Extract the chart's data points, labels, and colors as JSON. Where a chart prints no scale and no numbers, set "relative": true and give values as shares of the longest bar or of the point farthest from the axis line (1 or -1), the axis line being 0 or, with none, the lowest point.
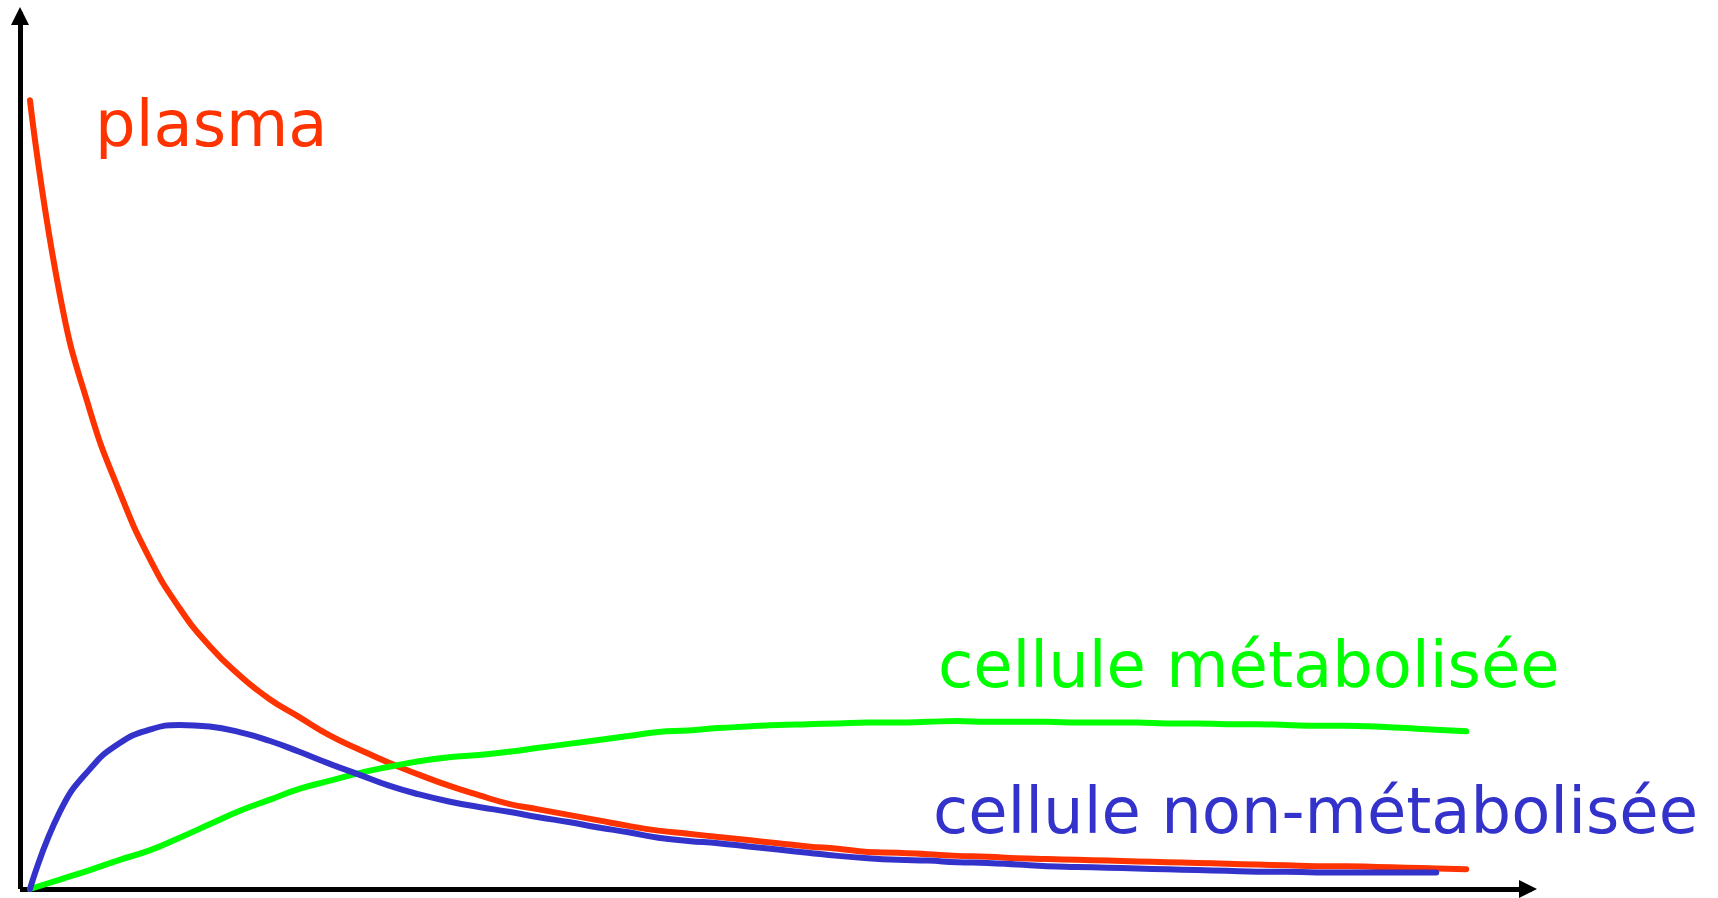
{
  "chart_data": {
    "type": "line",
    "relative": true,
    "marker": "none",
    "line_style": "solid",
    "categories": [
      null,
      null,
      null,
      null,
      null,
      null,
      null,
      null,
      null,
      null,
      null,
      null,
      null,
      null,
      null,
      null,
      null,
      null,
      null,
      null,
      null,
      null,
      null,
      null,
      null,
      null,
      null,
      null,
      null,
      null,
      null,
      null,
      null,
      null,
      null,
      null,
      null,
      null,
      null,
      null,
      null,
      null,
      null,
      null,
      null,
      null,
      null,
      null,
      null
    ],
    "series": [
      {
        "name": "plasma",
        "color": "#ff3300",
        "values": [
          1,
          0.753,
          0.607,
          0.503,
          0.419,
          0.356,
          0.308,
          0.271,
          0.241,
          0.218,
          0.195,
          0.177,
          0.16,
          0.145,
          0.131,
          0.119,
          0.108,
          0.101,
          0.094,
          0.087,
          0.08,
          0.074,
          0.07,
          0.066,
          0.062,
          0.058,
          0.054,
          0.051,
          0.047,
          0.046,
          0.044,
          0.042,
          0.041,
          0.039,
          0.038,
          0.037,
          0.036,
          0.035,
          0.034,
          0.033,
          0.032,
          0.031,
          0.03,
          0.029,
          0.029,
          0.028,
          0.027,
          0.026,
          0.025
        ]
      },
      {
        "name": "cellule métabolisée",
        "color": "#00ff00",
        "values": [
          0,
          0.012,
          0.024,
          0.037,
          0.049,
          0.065,
          0.082,
          0.099,
          0.113,
          0.127,
          0.137,
          0.147,
          0.155,
          0.162,
          0.167,
          0.17,
          0.174,
          0.179,
          0.184,
          0.189,
          0.194,
          0.199,
          0.201,
          0.204,
          0.206,
          0.208,
          0.209,
          0.21,
          0.211,
          0.211,
          0.212,
          0.213,
          0.212,
          0.212,
          0.212,
          0.211,
          0.211,
          0.211,
          0.21,
          0.21,
          0.209,
          0.209,
          0.208,
          0.207,
          0.207,
          0.206,
          0.204,
          0.202,
          0.2
        ]
      },
      {
        "name": "cellule non-métabolisée",
        "color": "#3333cc",
        "values": [
          0,
          0.098,
          0.152,
          0.185,
          0.202,
          0.208,
          0.206,
          0.199,
          0.188,
          0.174,
          0.159,
          0.145,
          0.131,
          0.12,
          0.111,
          0.104,
          0.098,
          0.091,
          0.085,
          0.078,
          0.072,
          0.065,
          0.061,
          0.058,
          0.054,
          0.05,
          0.046,
          0.042,
          0.039,
          0.037,
          0.036,
          0.034,
          0.033,
          0.031,
          0.029,
          0.028,
          0.027,
          0.026,
          0.025,
          0.024,
          0.023,
          0.022,
          0.022,
          0.021,
          0.021,
          0.021,
          0.021,
          0.021,
          null
        ]
      }
    ]
  }
}
